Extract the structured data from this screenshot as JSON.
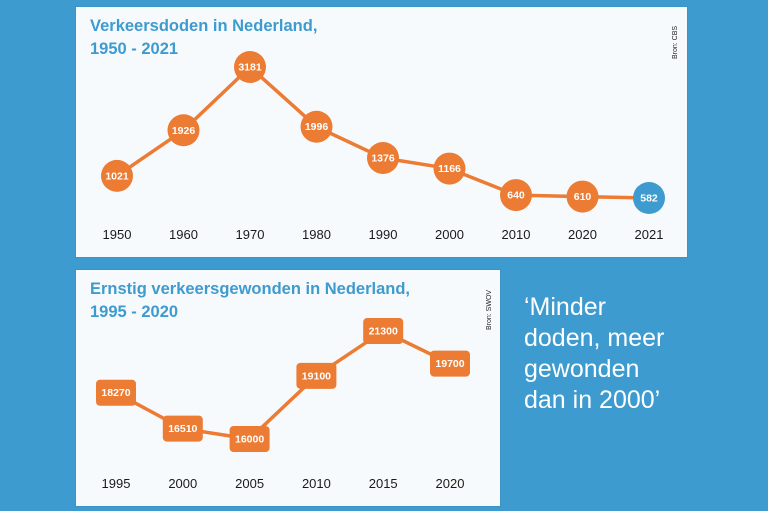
{
  "colors": {
    "background": "#3d9bcf",
    "panel": "#f7fafc",
    "title": "#3d9bcf",
    "series": "#ec7b33",
    "highlight": "#3d9bcf",
    "label_text": "#ffffff",
    "axis_text": "#1a1a1a",
    "quote_text": "#ffffff"
  },
  "quote": {
    "lines": [
      "‘Minder",
      "doden, meer",
      "gewonden",
      "dan in 2000’"
    ]
  },
  "chart_data": [
    {
      "type": "line",
      "marker": "circle",
      "title_lines": [
        "Verkeersdoden in Nederland,",
        "1950 - 2021"
      ],
      "source": "Bron: CBS",
      "xlabel": "",
      "ylabel": "",
      "categories": [
        "1950",
        "1960",
        "1970",
        "1980",
        "1990",
        "2000",
        "2010",
        "2020",
        "2021"
      ],
      "values": [
        1021,
        1926,
        3181,
        1996,
        1376,
        1166,
        640,
        610,
        582
      ],
      "data_labels": [
        "1021",
        "1926",
        "3181",
        "1996",
        "1376",
        "1166",
        "640",
        "610",
        "582"
      ],
      "highlight_index": 8,
      "grid": false,
      "legend": "none"
    },
    {
      "type": "line",
      "marker": "rounded-square",
      "title_lines": [
        "Ernstig verkeersgewonden in Nederland,",
        "1995 - 2020"
      ],
      "source": "Bron: SWOV",
      "xlabel": "",
      "ylabel": "",
      "categories": [
        "1995",
        "2000",
        "2005",
        "2010",
        "2015",
        "2020"
      ],
      "values": [
        18270,
        16510,
        16000,
        19100,
        21300,
        19700
      ],
      "data_labels": [
        "18270",
        "16510",
        "16000",
        "19100",
        "21300",
        "19700"
      ],
      "grid": false,
      "legend": "none"
    }
  ]
}
